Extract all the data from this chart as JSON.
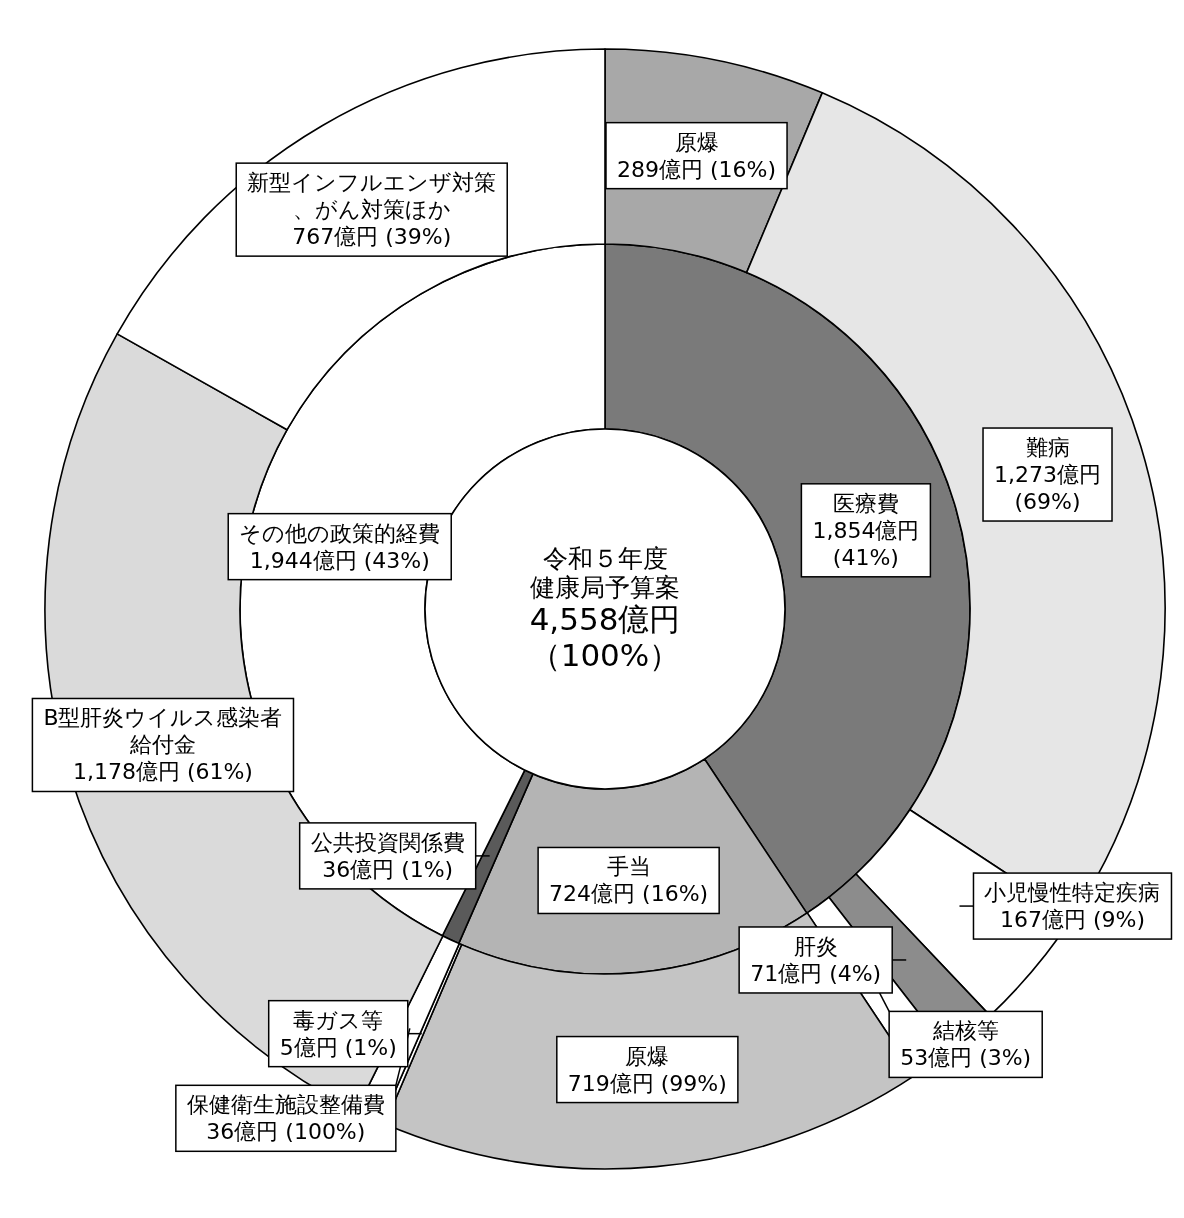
{
  "chart_data": [
    {
      "type": "donut",
      "title": "令和５年度",
      "subtitle": "健康局予算案",
      "annotations": [
        "4,558億円",
        "（100%）"
      ],
      "categories": [
        "医療費",
        "手当",
        "公共投資関係費",
        "その他の政策的経費"
      ],
      "values": [
        1854,
        724,
        36,
        1944
      ],
      "colors": [
        "#7a7a7a",
        "#b4b4b4",
        "#5a5a5a",
        "#ffffff"
      ],
      "value_labels": [
        "1,854億円 (41%)",
        "724億円 (16%)",
        "36億円 (1%)",
        "1,944億円 (43%)"
      ]
    },
    {
      "type": "donut",
      "categories": [
        "原爆",
        "難病",
        "小児慢性特定疾病",
        "肝炎",
        "結核等",
        "原爆",
        "毒ガス等",
        "保健衛生施設整備費",
        "B型肝炎ウイルス感染者給付金",
        "新型インフルエンザ対策、がん対策ほか"
      ],
      "values": [
        289,
        1273,
        167,
        71,
        53,
        719,
        5,
        36,
        1178,
        767
      ],
      "colors": [
        "#a8a8a8",
        "#e6e6e6",
        "#ffffff",
        "#8c8c8c",
        "#ffffff",
        "#c4c4c4",
        "#ffffff",
        "#ffffff",
        "#dadada",
        "#ffffff"
      ],
      "value_labels": [
        "289億円 (16%)",
        "1,273億円 (69%)",
        "167億円 (9%)",
        "71億円 (4%)",
        "53億円 (3%)",
        "719億円 (99%)",
        "5億円 (1%)",
        "36億円 (100%)",
        "1,178億円 (61%)",
        "767億円 (39%)"
      ]
    }
  ]
}
